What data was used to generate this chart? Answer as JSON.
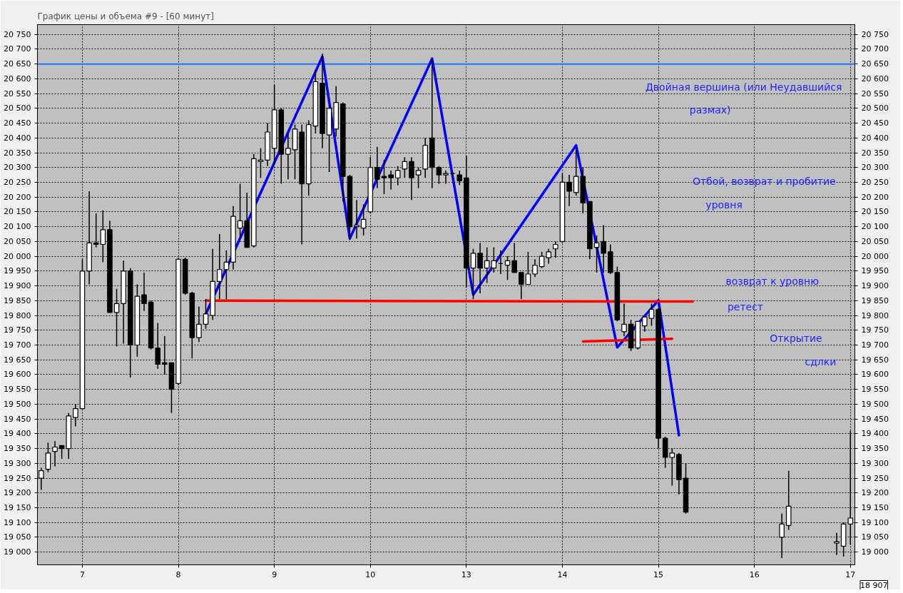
{
  "chart_data": {
    "type": "candlestick",
    "title": "График цены и объема #9 - [60 минут]",
    "categories": [
      null,
      null,
      null,
      null,
      null,
      null,
      "7",
      null,
      null,
      null,
      null,
      null,
      null,
      null,
      null,
      null,
      null,
      null,
      null,
      null,
      "8",
      null,
      null,
      null,
      null,
      null,
      null,
      null,
      null,
      null,
      null,
      null,
      null,
      null,
      "9",
      null,
      null,
      null,
      null,
      null,
      null,
      null,
      null,
      null,
      null,
      null,
      null,
      null,
      "10",
      null,
      null,
      null,
      null,
      null,
      null,
      null,
      null,
      null,
      null,
      null,
      null,
      null,
      "13",
      null,
      null,
      null,
      null,
      null,
      null,
      null,
      null,
      null,
      null,
      null,
      null,
      null,
      "14",
      null,
      null,
      null,
      null,
      null,
      null,
      null,
      null,
      null,
      null,
      null,
      null,
      null,
      "15",
      null,
      null,
      null,
      null,
      null,
      null,
      null,
      null,
      null,
      null,
      null,
      null,
      null,
      "16",
      null,
      null,
      null,
      null,
      null,
      null,
      null,
      null,
      null,
      null,
      null,
      null,
      null,
      "17"
    ],
    "ohlc": [
      [
        19250,
        19285,
        19210,
        19275
      ],
      [
        19280,
        19370,
        19270,
        19335
      ],
      [
        19340,
        19375,
        19290,
        19355
      ],
      [
        19360,
        19360,
        19315,
        19350
      ],
      [
        19350,
        19470,
        19315,
        19460
      ],
      [
        19455,
        19500,
        19425,
        19485
      ],
      [
        19485,
        19990,
        19485,
        19950
      ],
      [
        19950,
        20220,
        19905,
        20045
      ],
      [
        20045,
        20145,
        20030,
        20040
      ],
      [
        20040,
        20155,
        19980,
        20090
      ],
      [
        20090,
        20120,
        19810,
        19810
      ],
      [
        19810,
        19890,
        19695,
        19840
      ],
      [
        19840,
        19985,
        19705,
        19950
      ],
      [
        19950,
        19960,
        19590,
        19700
      ],
      [
        19700,
        19905,
        19660,
        19865
      ],
      [
        19870,
        19945,
        19815,
        19840
      ],
      [
        19845,
        19850,
        19685,
        19690
      ],
      [
        19690,
        19775,
        19620,
        19635
      ],
      [
        19640,
        19730,
        19600,
        19635
      ],
      [
        19640,
        19640,
        19470,
        19550
      ],
      [
        19570,
        19995,
        19565,
        19990
      ],
      [
        19990,
        19995,
        19870,
        19875
      ],
      [
        19875,
        19880,
        19655,
        19725
      ],
      [
        19725,
        19830,
        19710,
        19770
      ],
      [
        19770,
        19855,
        19755,
        19805
      ],
      [
        19800,
        20025,
        19785,
        19915
      ],
      [
        19915,
        20075,
        19855,
        19955
      ],
      [
        19955,
        20020,
        19855,
        19980
      ],
      [
        19980,
        20170,
        19955,
        20135
      ],
      [
        20095,
        20245,
        20065,
        20120
      ],
      [
        20120,
        20215,
        20030,
        20030
      ],
      [
        20035,
        20345,
        20030,
        20330
      ],
      [
        20320,
        20365,
        20265,
        20325
      ],
      [
        20325,
        20450,
        20305,
        20420
      ],
      [
        20365,
        20580,
        20310,
        20495
      ],
      [
        20495,
        20500,
        20245,
        20345
      ],
      [
        20345,
        20415,
        20260,
        20365
      ],
      [
        20360,
        20445,
        20260,
        20430
      ],
      [
        20420,
        20445,
        20040,
        20245
      ],
      [
        20245,
        20460,
        20205,
        20445
      ],
      [
        20440,
        20630,
        20415,
        20590
      ],
      [
        20585,
        20685,
        20365,
        20415
      ],
      [
        20410,
        20505,
        20285,
        20500
      ],
      [
        20430,
        20575,
        20405,
        20520
      ],
      [
        20515,
        20520,
        20185,
        20270
      ],
      [
        20270,
        20275,
        20055,
        20100
      ],
      [
        20100,
        20190,
        20060,
        20105
      ],
      [
        20095,
        20175,
        20070,
        20125
      ],
      [
        20150,
        20335,
        20145,
        20300
      ],
      [
        20300,
        20370,
        20230,
        20260
      ],
      [
        20270,
        20325,
        20210,
        20265
      ],
      [
        20275,
        20290,
        20225,
        20265
      ],
      [
        20265,
        20305,
        20240,
        20290
      ],
      [
        20295,
        20335,
        20265,
        20320
      ],
      [
        20320,
        20335,
        20190,
        20265
      ],
      [
        20275,
        20300,
        20230,
        20290
      ],
      [
        20295,
        20400,
        20265,
        20375
      ],
      [
        20400,
        20665,
        20230,
        20300
      ],
      [
        20300,
        20305,
        20245,
        20275
      ],
      [
        20275,
        20290,
        20245,
        20280
      ],
      [
        20280,
        20285,
        20270,
        20280
      ],
      [
        20275,
        20290,
        20240,
        20255
      ],
      [
        20265,
        20340,
        19895,
        19960
      ],
      [
        19960,
        20025,
        19855,
        20010
      ],
      [
        20010,
        20045,
        19875,
        19960
      ],
      [
        19960,
        20030,
        19910,
        19985
      ],
      [
        19960,
        20030,
        19945,
        19985
      ],
      [
        19975,
        20020,
        19940,
        19975
      ],
      [
        19970,
        20000,
        19920,
        19985
      ],
      [
        19985,
        20045,
        19945,
        19945
      ],
      [
        19945,
        19945,
        19855,
        19905
      ],
      [
        19905,
        20015,
        19905,
        19940
      ],
      [
        19940,
        19990,
        19930,
        19970
      ],
      [
        19965,
        20015,
        19960,
        20000
      ],
      [
        19995,
        20025,
        19975,
        20015
      ],
      [
        20025,
        20050,
        19995,
        20040
      ],
      [
        20050,
        20280,
        20045,
        20250
      ],
      [
        20250,
        20275,
        20170,
        20220
      ],
      [
        20215,
        20360,
        20205,
        20270
      ],
      [
        20270,
        20300,
        20145,
        20180
      ],
      [
        20185,
        20185,
        19990,
        20025
      ],
      [
        20030,
        20070,
        19945,
        20045
      ],
      [
        20050,
        20105,
        19945,
        20010
      ],
      [
        20015,
        20040,
        19940,
        19945
      ],
      [
        19945,
        19965,
        19780,
        19785
      ],
      [
        19745,
        19840,
        19730,
        19770
      ],
      [
        19770,
        19785,
        19680,
        19690
      ],
      [
        19690,
        19780,
        19685,
        19780
      ],
      [
        19765,
        19795,
        19745,
        19795
      ],
      [
        19790,
        19840,
        19765,
        19820
      ],
      [
        19820,
        19825,
        19350,
        19385
      ],
      [
        19385,
        19390,
        19285,
        19320
      ],
      [
        19320,
        19350,
        19225,
        19335
      ],
      [
        19330,
        19335,
        19195,
        19245
      ],
      [
        19250,
        19300,
        19130,
        19135
      ],
      null,
      null,
      null,
      null,
      null,
      null,
      null,
      null,
      null,
      null,
      null,
      null,
      null,
      [
        19050,
        19130,
        18980,
        19095
      ],
      [
        19090,
        19275,
        19075,
        19155
      ],
      null,
      null,
      null,
      null,
      null,
      null,
      [
        19030,
        19065,
        18990,
        19035
      ],
      [
        19020,
        19100,
        18985,
        19095
      ],
      [
        19095,
        19410,
        19025,
        19115
      ]
    ],
    "ylim": [
      18957,
      20783
    ],
    "yticks": [
      {
        "value": 19000,
        "label": "19 000"
      },
      {
        "value": 19050,
        "label": "19 050"
      },
      {
        "value": 19100,
        "label": "19 100"
      },
      {
        "value": 19150,
        "label": "19 150"
      },
      {
        "value": 19200,
        "label": "19 200"
      },
      {
        "value": 19250,
        "label": "19 250"
      },
      {
        "value": 19300,
        "label": "19 300"
      },
      {
        "value": 19350,
        "label": "19 350"
      },
      {
        "value": 19400,
        "label": "19 400"
      },
      {
        "value": 19450,
        "label": "19 450"
      },
      {
        "value": 19500,
        "label": "19 500"
      },
      {
        "value": 19550,
        "label": "19 550"
      },
      {
        "value": 19600,
        "label": "19 600"
      },
      {
        "value": 19650,
        "label": "19 650"
      },
      {
        "value": 19700,
        "label": "19 700"
      },
      {
        "value": 19750,
        "label": "19 750"
      },
      {
        "value": 19800,
        "label": "19 800"
      },
      {
        "value": 19850,
        "label": "19 850"
      },
      {
        "value": 19900,
        "label": "19 900"
      },
      {
        "value": 19950,
        "label": "19 950"
      },
      {
        "value": 20000,
        "label": "20 000"
      },
      {
        "value": 20050,
        "label": "20 050"
      },
      {
        "value": 20100,
        "label": "20 100"
      },
      {
        "value": 20150,
        "label": "20 150"
      },
      {
        "value": 20200,
        "label": "20 200"
      },
      {
        "value": 20250,
        "label": "20 250"
      },
      {
        "value": 20300,
        "label": "20 300"
      },
      {
        "value": 20350,
        "label": "20 350"
      },
      {
        "value": 20400,
        "label": "20 400"
      },
      {
        "value": 20450,
        "label": "20 450"
      },
      {
        "value": 20500,
        "label": "20 500"
      },
      {
        "value": 20550,
        "label": "20 550"
      },
      {
        "value": 20600,
        "label": "20 600"
      },
      {
        "value": 20650,
        "label": "20 650"
      },
      {
        "value": 20700,
        "label": "20 700"
      },
      {
        "value": 20750,
        "label": "20 750"
      }
    ],
    "y2lim": [
      18957,
      20783
    ],
    "y2ticks": [
      {
        "value": 19000,
        "label": "19 000"
      },
      {
        "value": 19050,
        "label": "19 050"
      },
      {
        "value": 19100,
        "label": "19 100"
      },
      {
        "value": 19150,
        "label": "19 150"
      },
      {
        "value": 19200,
        "label": "19 200"
      },
      {
        "value": 19250,
        "label": "19 250"
      },
      {
        "value": 19300,
        "label": "19 300"
      },
      {
        "value": 19350,
        "label": "19 350"
      },
      {
        "value": 19400,
        "label": "19 400"
      },
      {
        "value": 19450,
        "label": "19 450"
      },
      {
        "value": 19500,
        "label": "19 500"
      },
      {
        "value": 19550,
        "label": "19 550"
      },
      {
        "value": 19600,
        "label": "19 600"
      },
      {
        "value": 19650,
        "label": "19 650"
      },
      {
        "value": 19700,
        "label": "19 700"
      },
      {
        "value": 19750,
        "label": "19 750"
      },
      {
        "value": 19800,
        "label": "19 800"
      },
      {
        "value": 19850,
        "label": "19 850"
      },
      {
        "value": 19900,
        "label": "19 900"
      },
      {
        "value": 19950,
        "label": "19 950"
      },
      {
        "value": 20000,
        "label": "20 000"
      },
      {
        "value": 20050,
        "label": "20 050"
      },
      {
        "value": 20100,
        "label": "20 100"
      },
      {
        "value": 20150,
        "label": "20 150"
      },
      {
        "value": 20200,
        "label": "20 200"
      },
      {
        "value": 20250,
        "label": "20 250"
      },
      {
        "value": 20300,
        "label": "20 300"
      },
      {
        "value": 20350,
        "label": "20 350"
      },
      {
        "value": 20400,
        "label": "20 400"
      },
      {
        "value": 20450,
        "label": "20 450"
      },
      {
        "value": 20500,
        "label": "20 500"
      },
      {
        "value": 20550,
        "label": "20 550"
      },
      {
        "value": 20600,
        "label": "20 600"
      },
      {
        "value": 20650,
        "label": "20 650"
      },
      {
        "value": 20700,
        "label": "20 700"
      },
      {
        "value": 20750,
        "label": "20 750"
      }
    ],
    "grid": true,
    "series": [
      {
        "type": "line",
        "color": "#0000ff",
        "values": [
          null,
          null,
          null,
          null,
          null,
          null,
          null,
          null,
          null,
          null,
          null,
          null,
          null,
          null,
          null,
          null,
          null,
          null,
          null,
          null,
          null,
          null,
          null,
          null,
          19805,
          null,
          null,
          null,
          null,
          null,
          null,
          null,
          null,
          null,
          null,
          null,
          null,
          null,
          null,
          null,
          null,
          20675,
          null,
          null,
          null,
          20060,
          null,
          null,
          null,
          null,
          null,
          null,
          null,
          null,
          null,
          null,
          null,
          20668,
          null,
          null,
          null,
          null,
          null,
          19870,
          null,
          null,
          null,
          null,
          null,
          null,
          null,
          null,
          null,
          null,
          null,
          null,
          null,
          null,
          20375,
          null,
          null,
          null,
          null,
          null,
          19692,
          null,
          null,
          null,
          null,
          null,
          19851,
          null,
          null,
          19395,
          null,
          null,
          null,
          null,
          null,
          null,
          null,
          null,
          null,
          null,
          null,
          null,
          null,
          null,
          null,
          null,
          null,
          null,
          null,
          null,
          null,
          null,
          null,
          null,
          null
        ]
      },
      {
        "type": "line",
        "color": "#ff0000",
        "values": [
          null,
          null,
          null,
          null,
          null,
          null,
          null,
          null,
          null,
          null,
          null,
          null,
          null,
          null,
          null,
          null,
          null,
          null,
          null,
          null,
          null,
          null,
          null,
          null,
          19850,
          null,
          null,
          null,
          null,
          null,
          null,
          null,
          null,
          null,
          null,
          null,
          null,
          null,
          null,
          null,
          null,
          null,
          null,
          null,
          null,
          null,
          null,
          null,
          null,
          null,
          null,
          null,
          null,
          null,
          null,
          null,
          null,
          null,
          null,
          null,
          null,
          null,
          null,
          null,
          null,
          null,
          null,
          null,
          null,
          null,
          null,
          null,
          null,
          null,
          null,
          null,
          null,
          null,
          null,
          null,
          null,
          null,
          null,
          null,
          null,
          null,
          null,
          null,
          null,
          null,
          null,
          null,
          null,
          null,
          null,
          19847,
          null,
          null,
          null,
          null,
          null,
          null,
          null,
          null,
          null,
          null,
          null,
          null,
          null,
          null,
          null,
          null,
          null,
          null,
          null,
          null,
          null,
          null,
          null
        ]
      },
      {
        "type": "line",
        "color": "#ff0000",
        "values": [
          null,
          null,
          null,
          null,
          null,
          null,
          null,
          null,
          null,
          null,
          null,
          null,
          null,
          null,
          null,
          null,
          null,
          null,
          null,
          null,
          null,
          null,
          null,
          null,
          null,
          null,
          null,
          null,
          null,
          null,
          null,
          null,
          null,
          null,
          null,
          null,
          null,
          null,
          null,
          null,
          null,
          null,
          null,
          null,
          null,
          null,
          null,
          null,
          null,
          null,
          null,
          null,
          null,
          null,
          null,
          null,
          null,
          null,
          null,
          null,
          null,
          null,
          null,
          null,
          null,
          null,
          null,
          null,
          null,
          null,
          null,
          null,
          null,
          null,
          null,
          null,
          null,
          null,
          null,
          19712,
          null,
          null,
          null,
          null,
          null,
          null,
          null,
          null,
          null,
          null,
          null,
          null,
          19721,
          null,
          null,
          null,
          null,
          null,
          null,
          null,
          null,
          null,
          null,
          null,
          null,
          null,
          null,
          null,
          null,
          null,
          null,
          null,
          null,
          null,
          null,
          null,
          null,
          null,
          null
        ]
      }
    ],
    "ref_lines": [
      {
        "axis": "y",
        "value": 20650,
        "color": "#1e7bff"
      }
    ],
    "annotations": [
      "Двойная вершина (или Неудавшийся размах)",
      "Отбой, возврат и пробитие уровня",
      "возврат к уровню ретест",
      "Открытие сдлки",
      "18 907"
    ]
  }
}
